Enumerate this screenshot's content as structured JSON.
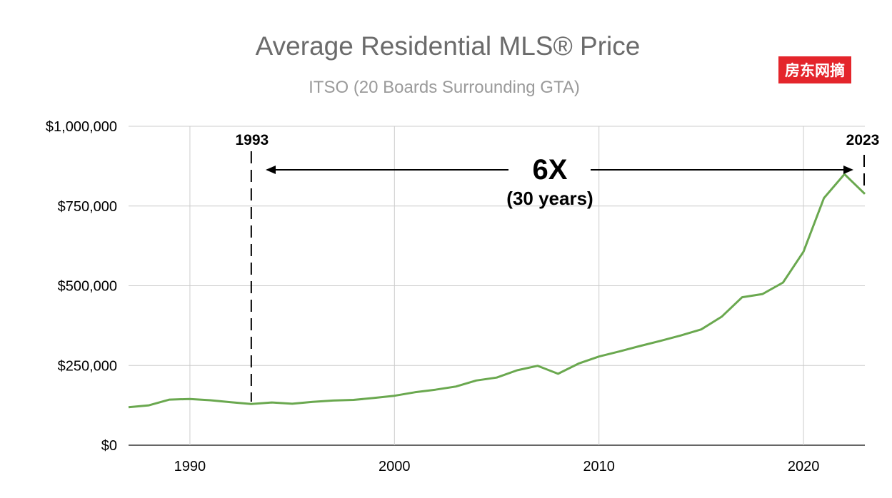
{
  "chart_data": {
    "type": "line",
    "title": "Average Residential MLS® Price",
    "subtitle": "ITSO (20 Boards Surrounding GTA)",
    "watermark": "房东网摘",
    "xlim": [
      1987,
      2023
    ],
    "ylim": [
      0,
      1000000
    ],
    "x_ticks": [
      1990,
      2000,
      2010,
      2020
    ],
    "y_ticks": [
      {
        "value": 0,
        "label": "$0"
      },
      {
        "value": 250000,
        "label": "$250,000"
      },
      {
        "value": 500000,
        "label": "$500,000"
      },
      {
        "value": 750000,
        "label": "$750,000"
      },
      {
        "value": 1000000,
        "label": "$1,000,000"
      }
    ],
    "grid": true,
    "series": [
      {
        "color": "#6aa84f",
        "x": [
          1987,
          1988,
          1989,
          1990,
          1991,
          1992,
          1993,
          1994,
          1995,
          1996,
          1997,
          1998,
          1999,
          2000,
          2001,
          2002,
          2003,
          2004,
          2005,
          2006,
          2007,
          2008,
          2009,
          2010,
          2011,
          2012,
          2013,
          2014,
          2015,
          2016,
          2017,
          2018,
          2019,
          2020,
          2021,
          2022,
          2023
        ],
        "values": [
          119000,
          125000,
          143000,
          145000,
          141000,
          135000,
          129000,
          134000,
          130000,
          136000,
          140000,
          142000,
          148000,
          155000,
          166000,
          174000,
          184000,
          203000,
          212000,
          235000,
          249000,
          224000,
          256000,
          278000,
          294000,
          311000,
          327000,
          344000,
          363000,
          403000,
          464000,
          474000,
          510000,
          607000,
          775000,
          850000,
          788000
        ]
      }
    ],
    "annotations": {
      "start_year": "1993",
      "end_year": "2023",
      "multiple": "6X",
      "span": "(30 years)"
    }
  }
}
